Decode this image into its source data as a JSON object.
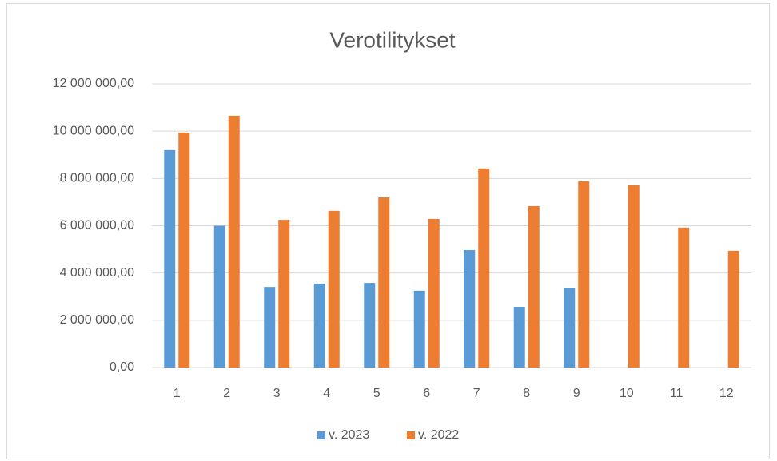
{
  "chart_data": {
    "type": "bar",
    "title": "Verotilitykset",
    "categories": [
      "1",
      "2",
      "3",
      "4",
      "5",
      "6",
      "7",
      "8",
      "9",
      "10",
      "11",
      "12"
    ],
    "series": [
      {
        "name": "v. 2023",
        "color": "#5b9bd5",
        "values": [
          9200000,
          6000000,
          3410000,
          3550000,
          3580000,
          3250000,
          4970000,
          2570000,
          3380000,
          null,
          null,
          null
        ]
      },
      {
        "name": "v. 2022",
        "color": "#ed7d31",
        "values": [
          9940000,
          10650000,
          6250000,
          6630000,
          7200000,
          6290000,
          8420000,
          6830000,
          7880000,
          7710000,
          5920000,
          4940000
        ]
      }
    ],
    "ylim": [
      0,
      12000000
    ],
    "yticks": [
      {
        "value": 0,
        "label": "0,00"
      },
      {
        "value": 2000000,
        "label": "2 000 000,00"
      },
      {
        "value": 4000000,
        "label": "4 000 000,00"
      },
      {
        "value": 6000000,
        "label": "6 000 000,00"
      },
      {
        "value": 8000000,
        "label": "8 000 000,00"
      },
      {
        "value": 10000000,
        "label": "10 000 000,00"
      },
      {
        "value": 12000000,
        "label": "12 000 000,00"
      }
    ],
    "grid": true,
    "legend": "bottom"
  }
}
